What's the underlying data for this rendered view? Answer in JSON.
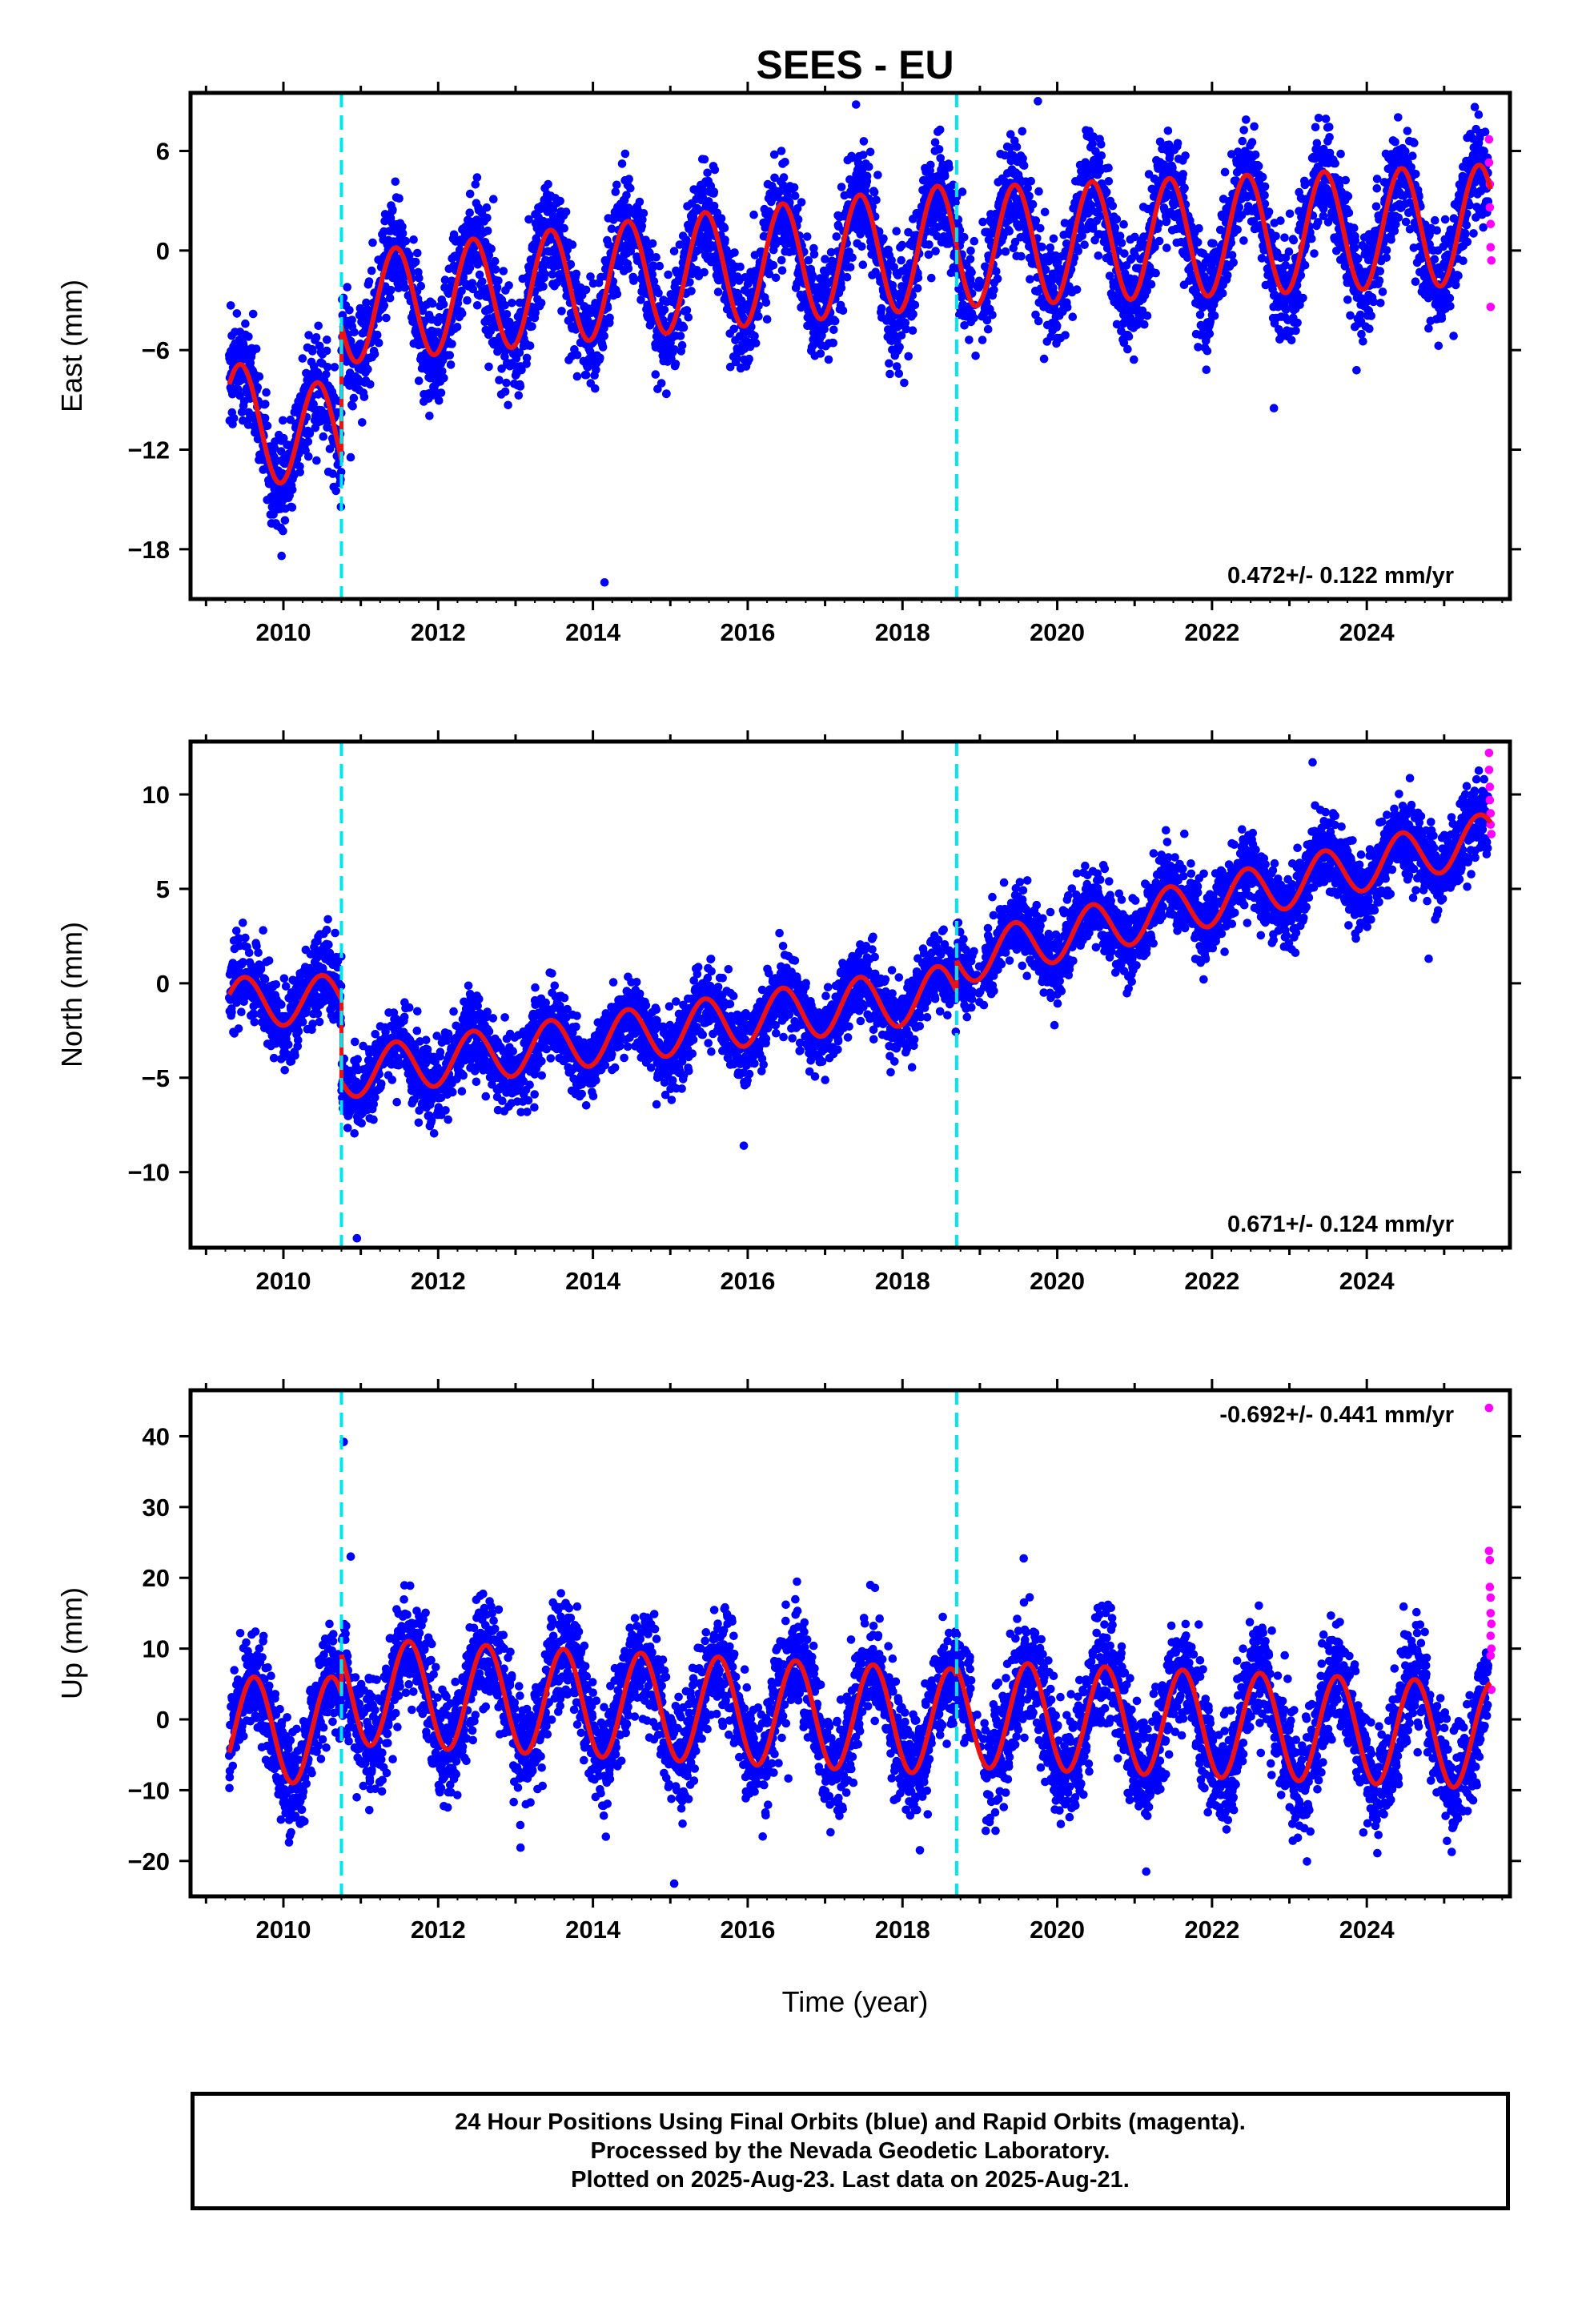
{
  "title": "SEES - EU",
  "xlabel": "Time (year)",
  "caption": {
    "line1": "24 Hour Positions Using Final Orbits (blue) and Rapid Orbits (magenta).",
    "line2": "Processed by the Nevada Geodetic Laboratory.",
    "line3": "Plotted on 2025-Aug-23. Last data on 2025-Aug-21."
  },
  "colors": {
    "final_points": "#0000ff",
    "rapid_points": "#ff00ff",
    "model_fit": "#ee1111",
    "offset_lines": "#00e5ee"
  },
  "chart_data": [
    {
      "type": "scatter",
      "id": "east",
      "ylabel": "East (mm)",
      "rate_label": "0.472+/- 0.122 mm/yr",
      "xlim": [
        2008.8,
        2025.85
      ],
      "ylim": [
        -21,
        9.5
      ],
      "xticks": [
        2010,
        2012,
        2014,
        2016,
        2018,
        2020,
        2022,
        2024
      ],
      "yticks": [
        -18,
        -12,
        -6,
        0,
        6
      ],
      "offsets": [
        2010.75,
        2018.7
      ],
      "model": {
        "segments": [
          {
            "start": 2009.3,
            "end": 2010.75,
            "base_start": -10.0,
            "slope": -1.1,
            "amp": 3.3,
            "phase": 2009.45,
            "amp_trend": 0
          },
          {
            "start": 2010.75,
            "end": 2018.7,
            "base_start": -3.5,
            "slope": 0.48,
            "amp": 3.3,
            "phase": 2011.45,
            "amp_trend": 0.05
          },
          {
            "start": 2018.7,
            "end": 2025.6,
            "base_start": 0.2,
            "slope": 0.2,
            "amp": 3.6,
            "phase": 2019.45,
            "amp_trend": 0
          }
        ]
      },
      "scatter_sigma": 1.6,
      "rapid_points": [
        [
          2025.58,
          6.7
        ],
        [
          2025.58,
          5.3
        ],
        [
          2025.59,
          4.0
        ],
        [
          2025.59,
          2.6
        ],
        [
          2025.6,
          1.6
        ],
        [
          2025.6,
          0.2
        ],
        [
          2025.61,
          -0.6
        ],
        [
          2025.6,
          -3.4
        ]
      ],
      "outliers": [
        [
          2014.15,
          -20.0
        ],
        [
          2017.4,
          8.8
        ],
        [
          2019.75,
          9.0
        ],
        [
          2022.8,
          -9.5
        ]
      ]
    },
    {
      "type": "scatter",
      "id": "north",
      "ylabel": "North (mm)",
      "rate_label": "0.671+/- 0.124 mm/yr",
      "xlim": [
        2008.8,
        2025.85
      ],
      "ylim": [
        -14,
        12.8
      ],
      "xticks": [
        2010,
        2012,
        2014,
        2016,
        2018,
        2020,
        2022,
        2024
      ],
      "yticks": [
        -10,
        -5,
        0,
        5,
        10
      ],
      "offsets": [
        2010.75,
        2018.7
      ],
      "model": {
        "segments": [
          {
            "start": 2009.3,
            "end": 2010.75,
            "base_start": -1.0,
            "slope": 0.1,
            "amp": 1.3,
            "phase": 2009.5,
            "amp_trend": 0
          },
          {
            "start": 2010.75,
            "end": 2018.7,
            "base_start": -4.8,
            "slope": 0.55,
            "amp": 1.3,
            "phase": 2011.45,
            "amp_trend": 0.02
          },
          {
            "start": 2018.7,
            "end": 2025.6,
            "base_start": 1.2,
            "slope": 0.95,
            "amp": 1.3,
            "phase": 2019.45,
            "amp_trend": 0
          }
        ]
      },
      "scatter_sigma": 1.0,
      "rapid_points": [
        [
          2025.58,
          12.2
        ],
        [
          2025.58,
          11.3
        ],
        [
          2025.59,
          10.4
        ],
        [
          2025.59,
          9.7
        ],
        [
          2025.6,
          9.0
        ],
        [
          2025.6,
          8.4
        ],
        [
          2025.61,
          7.9
        ]
      ],
      "outliers": [
        [
          2010.95,
          -13.5
        ],
        [
          2015.95,
          -8.6
        ],
        [
          2024.8,
          1.3
        ],
        [
          2023.3,
          11.7
        ]
      ]
    },
    {
      "type": "scatter",
      "id": "up",
      "ylabel": "Up (mm)",
      "rate_label": "-0.692+/- 0.441 mm/yr",
      "xlim": [
        2008.8,
        2025.85
      ],
      "ylim": [
        -25,
        46.5
      ],
      "xticks": [
        2010,
        2012,
        2014,
        2016,
        2018,
        2020,
        2022,
        2024
      ],
      "yticks": [
        -20,
        -10,
        0,
        10,
        20,
        30,
        40
      ],
      "offsets": [
        2010.75,
        2018.7
      ],
      "model": {
        "segments": [
          {
            "start": 2009.3,
            "end": 2010.75,
            "base_start": -1.5,
            "slope": 0.0,
            "amp": 7.5,
            "phase": 2009.62,
            "amp_trend": 0
          },
          {
            "start": 2010.75,
            "end": 2018.7,
            "base_start": 4.0,
            "slope": -0.55,
            "amp": 7.5,
            "phase": 2011.62,
            "amp_trend": 0
          },
          {
            "start": 2018.7,
            "end": 2025.6,
            "base_start": 0.8,
            "slope": -0.45,
            "amp": 7.5,
            "phase": 2019.62,
            "amp_trend": 0
          }
        ]
      },
      "scatter_sigma": 4.0,
      "rapid_points": [
        [
          2025.58,
          44.0
        ],
        [
          2025.58,
          23.8
        ],
        [
          2025.59,
          22.5
        ],
        [
          2025.59,
          18.7
        ],
        [
          2025.6,
          17.2
        ],
        [
          2025.6,
          15.0
        ],
        [
          2025.61,
          13.5
        ],
        [
          2025.6,
          11.8
        ],
        [
          2025.61,
          10.0
        ],
        [
          2025.6,
          9.0
        ],
        [
          2025.61,
          4.2
        ]
      ],
      "outliers": [
        [
          2010.78,
          39.2
        ],
        [
          2010.87,
          23.0
        ],
        [
          2015.05,
          -23.2
        ],
        [
          2021.15,
          -21.5
        ]
      ]
    }
  ]
}
